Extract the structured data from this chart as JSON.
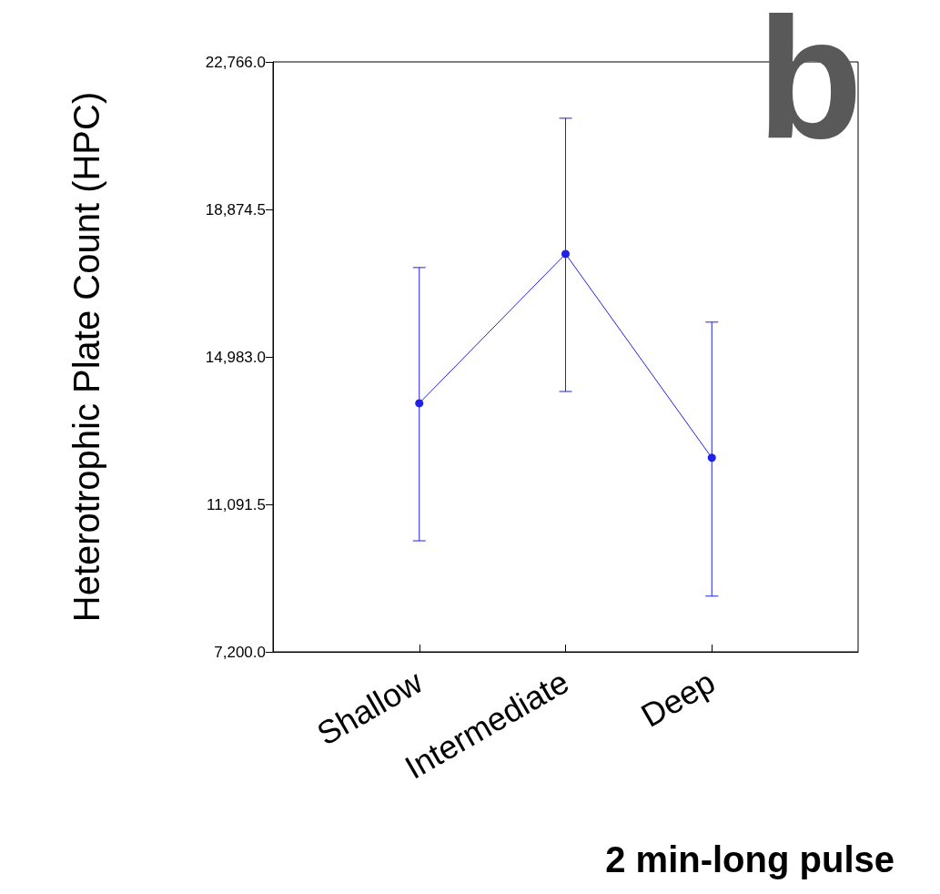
{
  "chart_data": {
    "type": "line",
    "ylabel": "Heterotrophic Plate Count (HPC)",
    "categories": [
      "Shallow",
      "Intermediate",
      "Deep"
    ],
    "series": [
      {
        "color": "#2020e8",
        "values": [
          13760,
          17700,
          12320
        ],
        "errors": [
          [
            10130,
            17340
          ],
          [
            14070,
            21280
          ],
          [
            8670,
            15900
          ]
        ]
      }
    ],
    "ylim": [
      7200,
      22766
    ],
    "yticks": [
      {
        "value": 7200,
        "label": "7,200.0"
      },
      {
        "value": 11091.5,
        "label": "11,091.5"
      },
      {
        "value": 14983,
        "label": "14,983.0"
      },
      {
        "value": 18874.5,
        "label": "18,874.5"
      },
      {
        "value": 22766,
        "label": "22,766.0"
      }
    ],
    "grid": false,
    "marker": "circle",
    "line_style": "solid",
    "annotations": [
      "b",
      "2 min-long pulse"
    ]
  }
}
